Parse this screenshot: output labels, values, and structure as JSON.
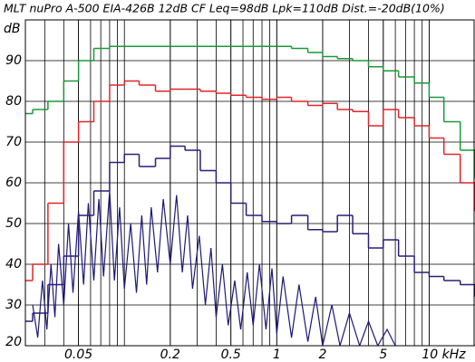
{
  "chart_data": {
    "type": "step",
    "title": "MLT nuPro A-500 EIA-426B 12dB CF Leq=98dB Lpk=110dB Dist.=-20dB(10%)",
    "ylabel": "dB",
    "x": [
      0.0224,
      0.025,
      0.0315,
      0.04,
      0.05,
      0.063,
      0.08,
      0.1,
      0.125,
      0.16,
      0.2,
      0.25,
      0.315,
      0.4,
      0.5,
      0.63,
      0.8,
      1,
      1.25,
      1.6,
      2,
      2.5,
      3.15,
      4,
      5,
      6.3,
      8,
      10,
      12.5,
      16,
      20
    ],
    "series": [
      {
        "color": "#1a9a3a",
        "values": [
          77,
          78,
          80,
          85,
          90,
          93,
          93.5,
          93.5,
          93.5,
          93.5,
          93.5,
          93.5,
          93.5,
          93.5,
          93.5,
          93.5,
          93.5,
          93.5,
          93,
          92,
          91,
          90.5,
          90,
          88.5,
          87.5,
          86,
          84.5,
          81,
          75,
          68,
          61
        ]
      },
      {
        "color": "#e0262a",
        "values": [
          36,
          40,
          55,
          70,
          75,
          80,
          84,
          85,
          84,
          82.5,
          83,
          83,
          82.5,
          82,
          81.5,
          81,
          80.5,
          81,
          80,
          79,
          79.5,
          78,
          77.5,
          74,
          78,
          76,
          74,
          71,
          67,
          60,
          53
        ]
      },
      {
        "color": "#2a1f7a",
        "values": [
          26,
          28,
          35,
          42,
          52,
          58,
          65,
          67,
          64,
          66,
          69,
          68,
          63,
          60,
          55,
          52,
          50.5,
          50,
          52,
          48.5,
          48,
          52,
          47.5,
          44,
          46,
          42,
          38,
          37,
          36,
          35,
          32
        ]
      },
      {
        "color": "#1c1878",
        "x": [
          0.025,
          0.027,
          0.029,
          0.031,
          0.033,
          0.035,
          0.037,
          0.04,
          0.043,
          0.046,
          0.05,
          0.054,
          0.058,
          0.063,
          0.068,
          0.073,
          0.08,
          0.086,
          0.093,
          0.1,
          0.11,
          0.12,
          0.13,
          0.14,
          0.15,
          0.165,
          0.18,
          0.2,
          0.22,
          0.24,
          0.26,
          0.28,
          0.31,
          0.34,
          0.37,
          0.4,
          0.44,
          0.48,
          0.53,
          0.58,
          0.64,
          0.7,
          0.77,
          0.85,
          0.93,
          1.0,
          1.1,
          1.25,
          1.4,
          1.6,
          1.8,
          2.0,
          2.3,
          2.6,
          3.0,
          3.5,
          4.0,
          4.6,
          5.3,
          6.0
        ],
        "values": [
          30,
          22,
          36,
          24,
          40,
          27,
          45,
          30,
          50,
          33,
          53,
          35,
          55,
          36,
          56,
          37,
          58,
          36,
          54,
          34,
          50,
          33,
          52,
          35,
          54,
          38,
          56,
          40,
          57,
          38,
          52,
          34,
          47,
          30,
          44,
          27,
          40,
          25,
          36,
          24,
          38,
          25,
          40,
          24,
          39,
          23,
          37,
          22,
          35,
          21,
          32,
          20,
          30,
          20,
          28,
          20,
          26,
          20,
          24,
          20
        ]
      }
    ],
    "xscale": "log",
    "xlim": [
      0.0224,
      20
    ],
    "ylim": [
      20,
      100
    ],
    "xticks": [
      0.05,
      0.2,
      0.5,
      1,
      2,
      5,
      {
        "value": 10,
        "label": "10 kHz"
      }
    ],
    "yticks": [
      20,
      30,
      40,
      50,
      60,
      70,
      80,
      90
    ],
    "grid": true,
    "minor_grid": true
  }
}
